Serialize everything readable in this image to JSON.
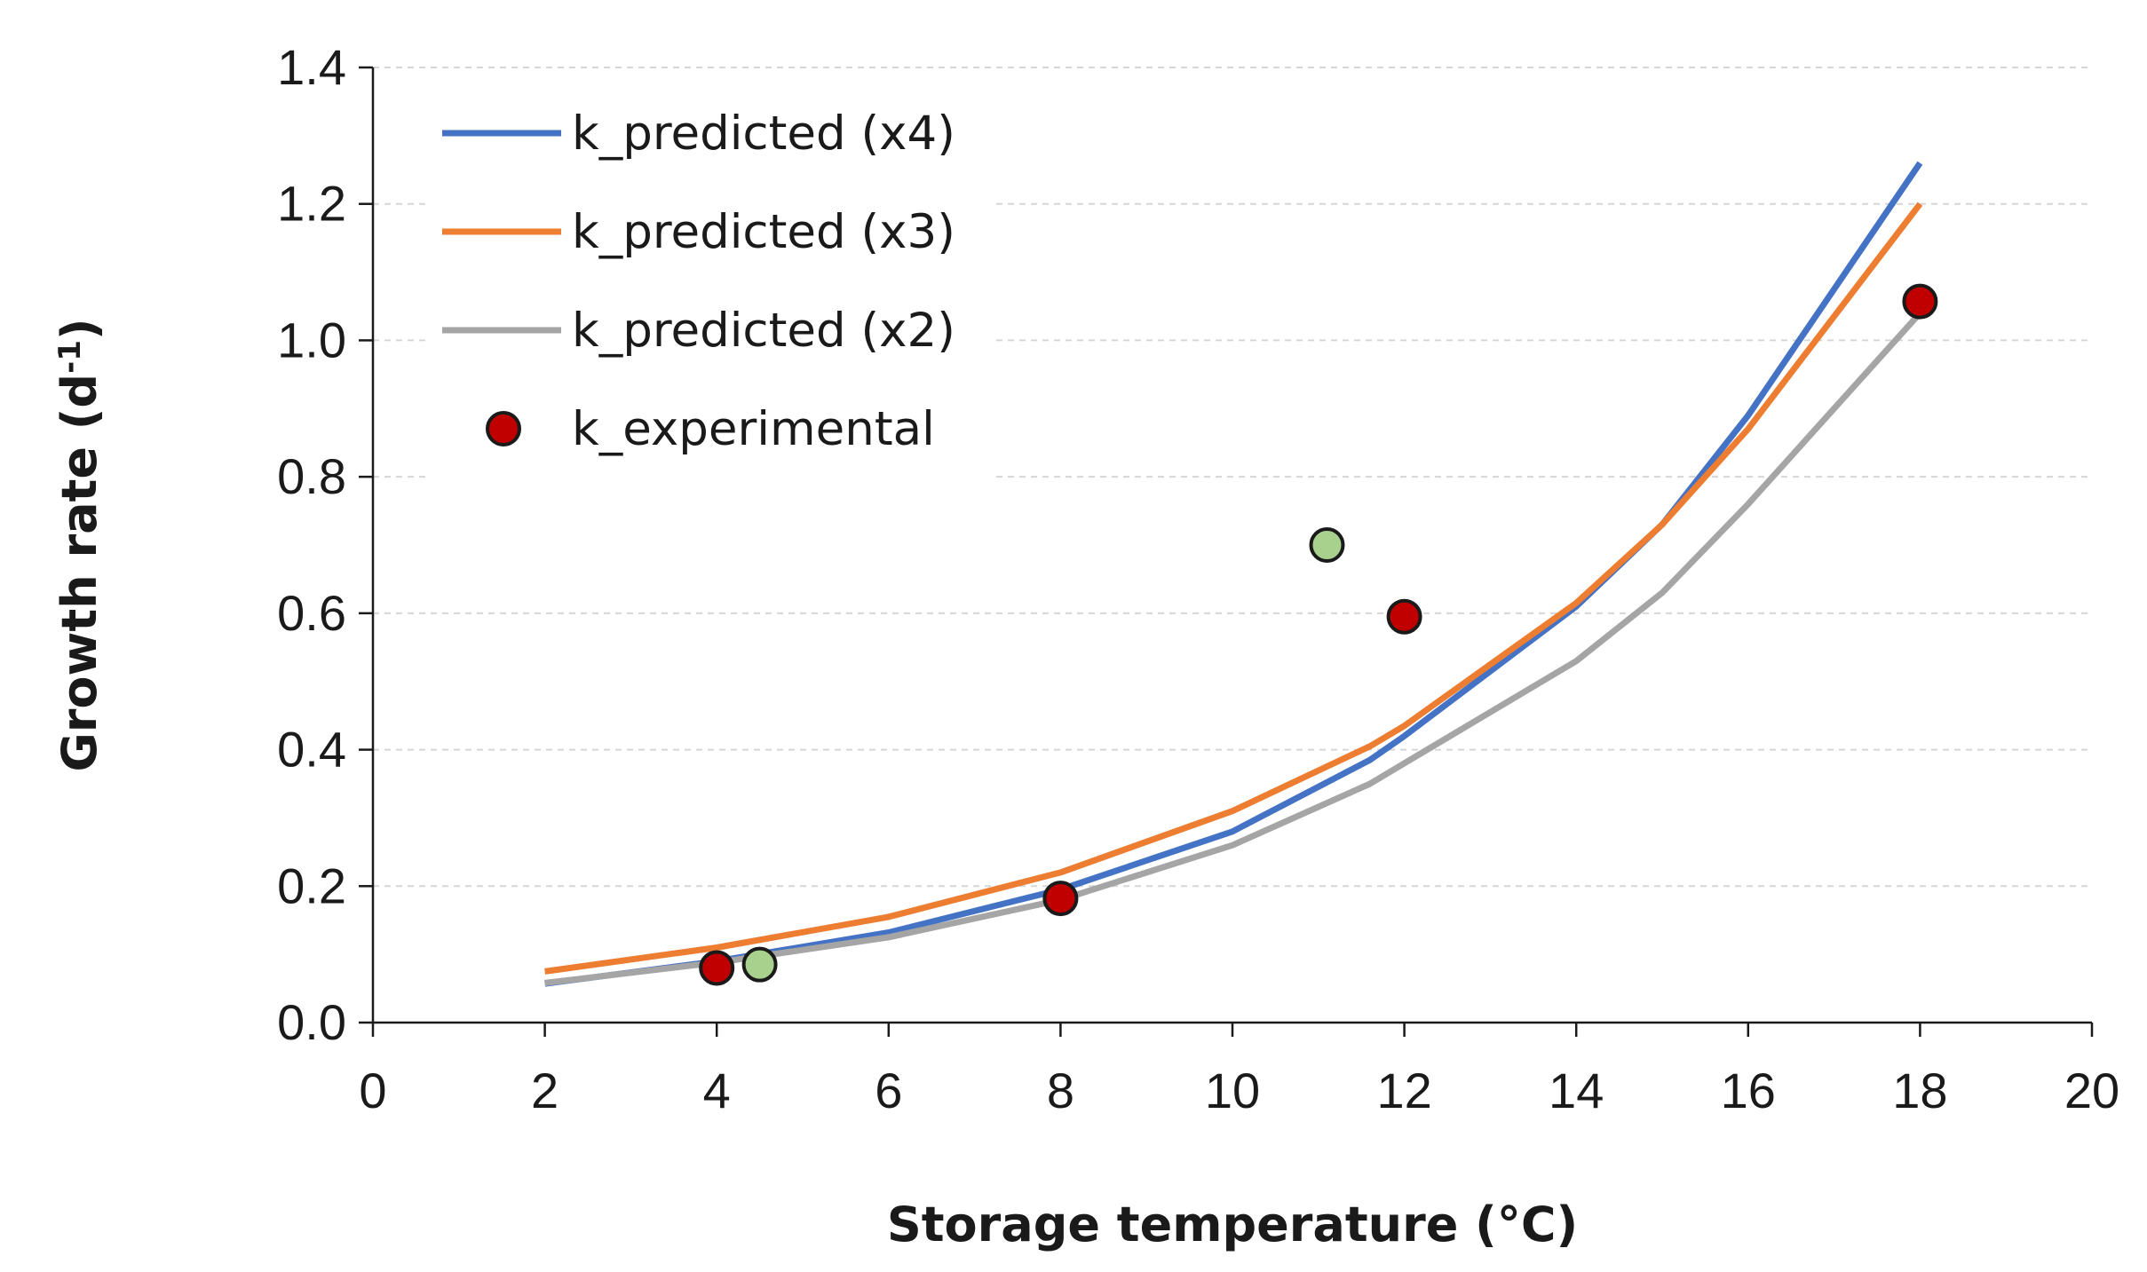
{
  "chart_data": {
    "type": "line",
    "xlabel": "Storage temperature (°C)",
    "ylabel": "Growth rate (d",
    "ylabel_sup": "-1",
    "ylabel_end": ")",
    "xlim": [
      0,
      20
    ],
    "ylim": [
      0,
      1.4
    ],
    "x_ticks": [
      "0",
      "2",
      "4",
      "6",
      "8",
      "10",
      "12",
      "14",
      "16",
      "18",
      "20"
    ],
    "y_ticks": [
      "0.0",
      "0.2",
      "0.4",
      "0.6",
      "0.8",
      "1.0",
      "1.2",
      "1.4"
    ],
    "grid": "horizontal dashed",
    "legend_position": "top-left",
    "series": [
      {
        "name": "k_predicted (x4)",
        "kind": "line",
        "color": "#4472C4",
        "x": [
          2,
          4,
          6,
          8,
          10,
          11.6,
          12,
          14,
          15,
          16,
          18
        ],
        "y": [
          0.057,
          0.09,
          0.132,
          0.195,
          0.28,
          0.385,
          0.42,
          0.61,
          0.73,
          0.89,
          1.26
        ]
      },
      {
        "name": "k_predicted (x3)",
        "kind": "line",
        "color": "#ED7D31",
        "x": [
          2,
          4,
          6,
          8,
          10,
          11.6,
          12,
          14,
          15,
          16,
          18
        ],
        "y": [
          0.075,
          0.11,
          0.155,
          0.22,
          0.31,
          0.405,
          0.435,
          0.615,
          0.73,
          0.87,
          1.2
        ]
      },
      {
        "name": "k_predicted (x2)",
        "kind": "line",
        "color": "#A5A5A5",
        "x": [
          2,
          4,
          6,
          8,
          10,
          11.6,
          12,
          14,
          15,
          16,
          18
        ],
        "y": [
          0.058,
          0.088,
          0.125,
          0.18,
          0.26,
          0.35,
          0.38,
          0.53,
          0.63,
          0.76,
          1.04
        ]
      },
      {
        "name": "k_experimental",
        "kind": "points",
        "color": "#C00000",
        "x": [
          4,
          8,
          12,
          18
        ],
        "y": [
          0.08,
          0.182,
          0.595,
          1.057
        ]
      },
      {
        "name": "",
        "kind": "points",
        "color": "#A9D18E",
        "x": [
          4.5,
          11.1
        ],
        "y": [
          0.085,
          0.7
        ]
      }
    ]
  }
}
